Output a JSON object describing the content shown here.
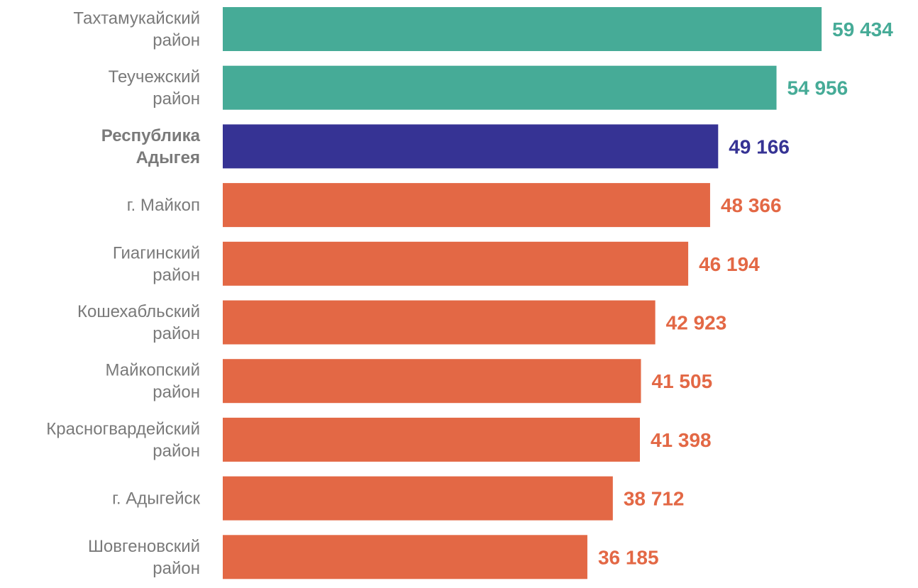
{
  "chart_data": {
    "type": "bar",
    "orientation": "horizontal",
    "title": "",
    "xlabel": "",
    "ylabel": "",
    "xlim": [
      0,
      64000
    ],
    "grid": false,
    "legend": "none",
    "categories": [
      [
        "Тахтамукайский",
        "район"
      ],
      [
        "Теучежский",
        "район"
      ],
      [
        "Республика",
        "Адыгея"
      ],
      [
        "г. Майкоп"
      ],
      [
        "Гиагинский",
        "район"
      ],
      [
        "Кошехабльский",
        "район"
      ],
      [
        "Майкопский",
        "район"
      ],
      [
        "Красногвардейский",
        "район"
      ],
      [
        "г. Адыгейск"
      ],
      [
        "Шовгеновский",
        "район"
      ]
    ],
    "values": [
      59434,
      54956,
      49166,
      48366,
      46194,
      42923,
      41505,
      41398,
      38712,
      36185
    ],
    "value_labels": [
      "59 434",
      "54 956",
      "49 166",
      "48 366",
      "46 194",
      "42 923",
      "41 505",
      "41 398",
      "38 712",
      "36 185"
    ],
    "bar_groups": [
      "above",
      "above",
      "total",
      "below",
      "below",
      "below",
      "below",
      "below",
      "below",
      "below"
    ],
    "colors": {
      "above": "#46ab97",
      "total": "#363394",
      "below": "#e36845",
      "category_label": "#7a7a7a"
    }
  }
}
